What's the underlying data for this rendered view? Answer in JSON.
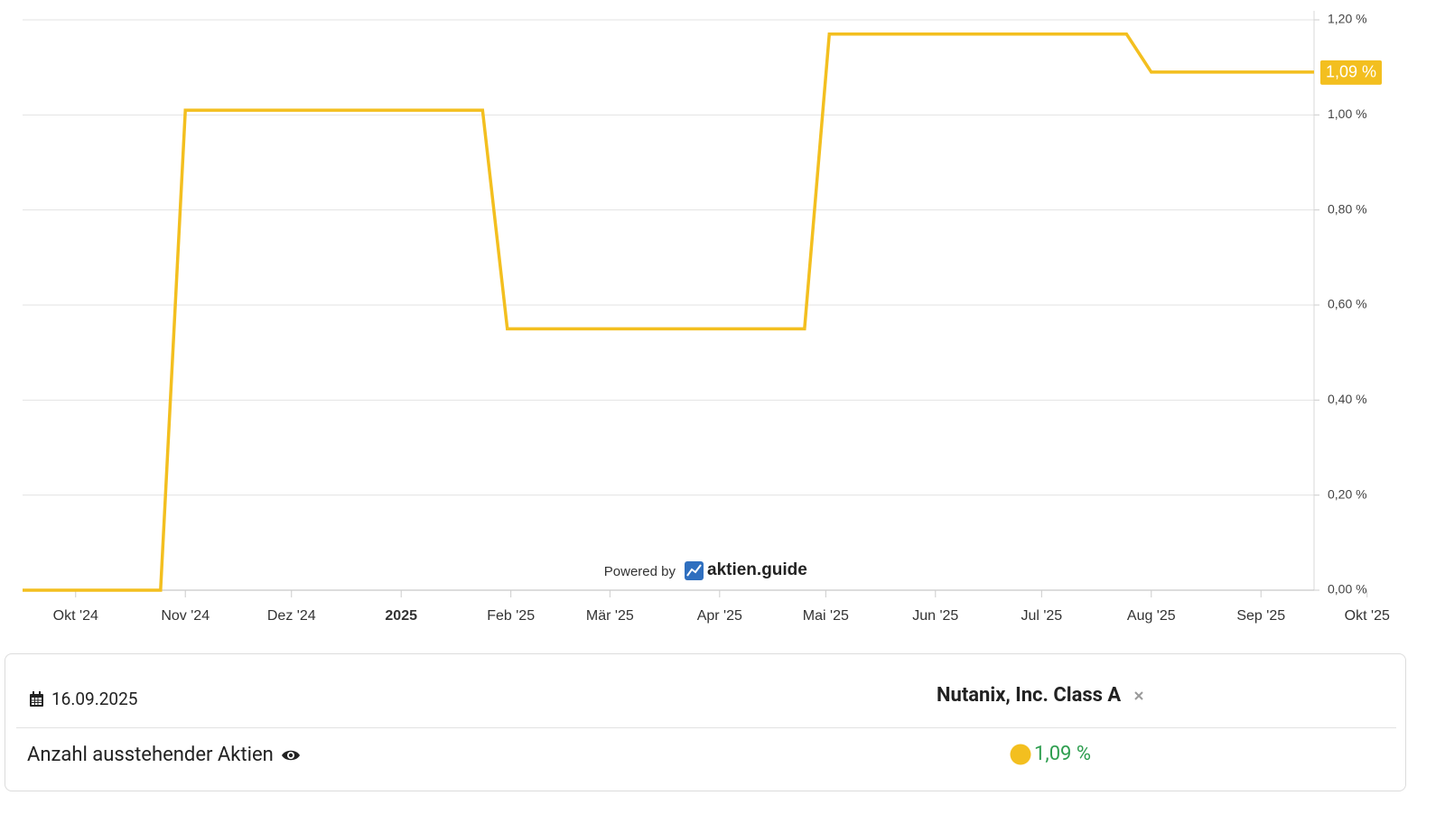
{
  "chart_data": {
    "type": "line",
    "x": [
      "2024-09-16",
      "2024-10-25",
      "2024-11-01",
      "2025-01-24",
      "2025-01-31",
      "2025-04-25",
      "2025-05-02",
      "2025-07-25",
      "2025-08-01",
      "2025-09-16"
    ],
    "series": [
      {
        "name": "Nutanix, Inc. Class A",
        "color": "#f3bf1f",
        "values": [
          0,
          0,
          1.01,
          1.01,
          0.55,
          0.55,
          1.17,
          1.17,
          1.09,
          1.09
        ],
        "value_labels": [
          null,
          null,
          null,
          null,
          null,
          null,
          null,
          null,
          null,
          "1,09 %"
        ]
      }
    ],
    "xlim": [
      "2024-09-16",
      "2025-09-16"
    ],
    "xticks": [
      {
        "value": "2024-10-01",
        "label": "Okt '24"
      },
      {
        "value": "2024-11-01",
        "label": "Nov '24"
      },
      {
        "value": "2024-12-01",
        "label": "Dez '24"
      },
      {
        "value": "2025-01-01",
        "label": "2025"
      },
      {
        "value": "2025-02-01",
        "label": "Feb '25"
      },
      {
        "value": "2025-03-01",
        "label": "Mär '25"
      },
      {
        "value": "2025-04-01",
        "label": "Apr '25"
      },
      {
        "value": "2025-05-01",
        "label": "Mai '25"
      },
      {
        "value": "2025-06-01",
        "label": "Jun '25"
      },
      {
        "value": "2025-07-01",
        "label": "Jul '25"
      },
      {
        "value": "2025-08-01",
        "label": "Aug '25"
      },
      {
        "value": "2025-09-01",
        "label": "Sep '25"
      },
      {
        "value": "2025-10-01",
        "label": "Okt '25"
      }
    ],
    "ylim": [
      0,
      1.2
    ],
    "yticks": [
      {
        "value": 0,
        "label": "0,00 %"
      },
      {
        "value": 0.2,
        "label": "0,20 %"
      },
      {
        "value": 0.4,
        "label": "0,40 %"
      },
      {
        "value": 0.6,
        "label": "0,60 %"
      },
      {
        "value": 0.8,
        "label": "0,80 %"
      },
      {
        "value": 1.0,
        "label": "1,00 %"
      },
      {
        "value": 1.2,
        "label": "1,20 %"
      }
    ],
    "grid": true,
    "y_axis_side": "right",
    "watermark": {
      "prefix": "Powered by",
      "brand": "aktien.guide"
    }
  },
  "panel": {
    "date": "16.09.2025",
    "company": "Nutanix, Inc. Class A",
    "metric": "Anzahl ausstehender Aktien",
    "value": "1,09 %"
  }
}
